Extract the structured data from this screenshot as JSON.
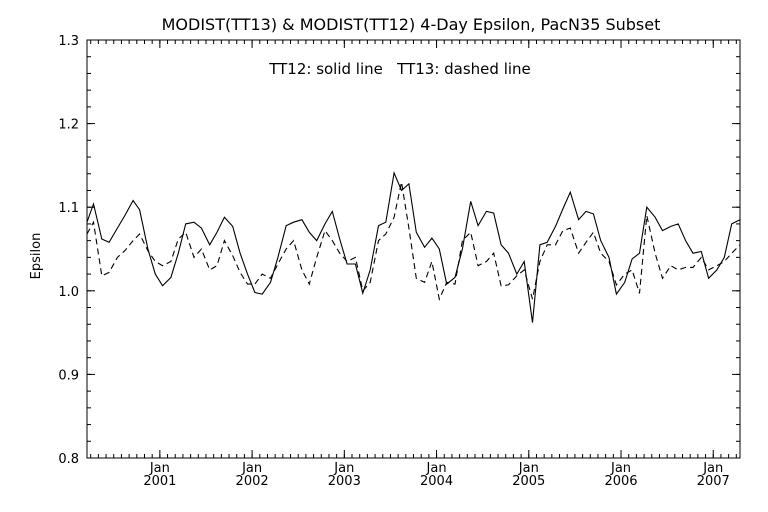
{
  "chart_data": {
    "type": "line",
    "title": "MODIST(TT13) & MODIST(TT12) 4-Day Epsilon, PacN35 Subset",
    "annotation": "TT12: solid line   TT13: dashed line",
    "ylabel": "Epsilon",
    "xlabel": "",
    "ylim": [
      0.8,
      1.3
    ],
    "xlim": [
      2000.21,
      2007.29
    ],
    "yticks": [
      0.8,
      0.9,
      1.0,
      1.1,
      1.2,
      1.3
    ],
    "yticklabels": [
      "0.8",
      "0.9",
      "1.0",
      "1.1",
      "1.2",
      "1.3"
    ],
    "xticks": [
      {
        "x": 2001.0,
        "month": "Jan",
        "year": "2001"
      },
      {
        "x": 2002.0,
        "month": "Jan",
        "year": "2002"
      },
      {
        "x": 2003.0,
        "month": "Jan",
        "year": "2003"
      },
      {
        "x": 2004.0,
        "month": "Jan",
        "year": "2004"
      },
      {
        "x": 2005.0,
        "month": "Jan",
        "year": "2005"
      },
      {
        "x": 2006.0,
        "month": "Jan",
        "year": "2006"
      },
      {
        "x": 2007.0,
        "month": "Jan",
        "year": "2007"
      }
    ],
    "grid": false,
    "x": [
      2000.21,
      2000.28,
      2000.37,
      2000.45,
      2000.54,
      2000.62,
      2000.71,
      2000.78,
      2000.87,
      2000.95,
      2001.03,
      2001.12,
      2001.2,
      2001.28,
      2001.37,
      2001.45,
      2001.54,
      2001.62,
      2001.7,
      2001.79,
      2001.87,
      2001.95,
      2002.03,
      2002.11,
      2002.2,
      2002.28,
      2002.37,
      2002.45,
      2002.54,
      2002.62,
      2002.7,
      2002.79,
      2002.87,
      2002.95,
      2003.03,
      2003.12,
      2003.2,
      2003.28,
      2003.37,
      2003.45,
      2003.54,
      2003.62,
      2003.7,
      2003.78,
      2003.87,
      2003.95,
      2004.03,
      2004.11,
      2004.2,
      2004.28,
      2004.37,
      2004.45,
      2004.54,
      2004.62,
      2004.7,
      2004.78,
      2004.87,
      2004.95,
      2005.04,
      2005.12,
      2005.2,
      2005.29,
      2005.37,
      2005.45,
      2005.54,
      2005.62,
      2005.7,
      2005.78,
      2005.87,
      2005.95,
      2006.04,
      2006.12,
      2006.2,
      2006.28,
      2006.37,
      2006.45,
      2006.54,
      2006.62,
      2006.7,
      2006.78,
      2006.87,
      2006.95,
      2007.04,
      2007.12,
      2007.2,
      2007.29
    ],
    "series": [
      {
        "name": "TT12",
        "style": "solid",
        "values": [
          1.082,
          1.104,
          1.062,
          1.058,
          1.075,
          1.09,
          1.108,
          1.097,
          1.05,
          1.02,
          1.006,
          1.016,
          1.045,
          1.08,
          1.082,
          1.075,
          1.055,
          1.07,
          1.088,
          1.077,
          1.045,
          1.02,
          0.998,
          0.996,
          1.01,
          1.04,
          1.078,
          1.082,
          1.085,
          1.07,
          1.06,
          1.08,
          1.095,
          1.062,
          1.032,
          1.032,
          0.997,
          1.025,
          1.078,
          1.082,
          1.141,
          1.12,
          1.128,
          1.07,
          1.052,
          1.063,
          1.05,
          1.008,
          1.016,
          1.05,
          1.107,
          1.078,
          1.095,
          1.093,
          1.055,
          1.045,
          1.02,
          1.035,
          0.962,
          1.055,
          1.058,
          1.077,
          1.098,
          1.118,
          1.085,
          1.095,
          1.092,
          1.06,
          1.04,
          0.996,
          1.01,
          1.038,
          1.045,
          1.1,
          1.088,
          1.072,
          1.077,
          1.08,
          1.06,
          1.045,
          1.047,
          1.015,
          1.025,
          1.04,
          1.08,
          1.085
        ]
      },
      {
        "name": "TT13",
        "style": "dashed",
        "values": [
          1.068,
          1.082,
          1.018,
          1.022,
          1.04,
          1.048,
          1.06,
          1.068,
          1.048,
          1.035,
          1.03,
          1.035,
          1.062,
          1.07,
          1.04,
          1.05,
          1.025,
          1.03,
          1.06,
          1.042,
          1.022,
          1.008,
          1.008,
          1.02,
          1.015,
          1.032,
          1.05,
          1.06,
          1.025,
          1.008,
          1.04,
          1.072,
          1.06,
          1.045,
          1.035,
          1.04,
          1.0,
          1.01,
          1.06,
          1.068,
          1.088,
          1.13,
          1.075,
          1.015,
          1.01,
          1.035,
          0.99,
          1.01,
          1.008,
          1.06,
          1.07,
          1.03,
          1.035,
          1.045,
          1.006,
          1.007,
          1.018,
          1.025,
          0.99,
          1.035,
          1.055,
          1.055,
          1.072,
          1.075,
          1.045,
          1.058,
          1.07,
          1.045,
          1.035,
          1.007,
          1.02,
          1.025,
          0.997,
          1.09,
          1.045,
          1.015,
          1.03,
          1.025,
          1.028,
          1.028,
          1.04,
          1.025,
          1.03,
          1.035,
          1.045,
          1.055
        ]
      }
    ]
  }
}
